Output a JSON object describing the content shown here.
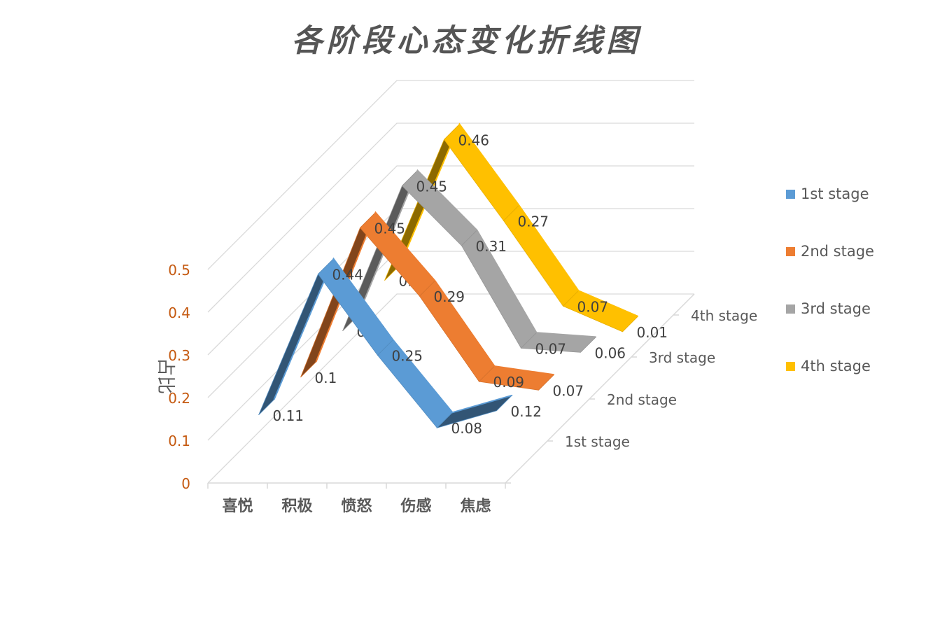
{
  "chart_data": {
    "type": "line",
    "variant": "3d-ribbon",
    "title": "各阶段心态变化折线图",
    "xlabel": "",
    "ylabel": "占比",
    "ylim": [
      0,
      0.5
    ],
    "yticks": [
      "0",
      "0.1",
      "0.2",
      "0.3",
      "0.4",
      "0.5"
    ],
    "categories": [
      "喜悦",
      "积极",
      "愤怒",
      "伤感",
      "焦虑"
    ],
    "depth_labels": [
      "1st stage",
      "2nd stage",
      "3rd stage",
      "4th stage"
    ],
    "grid": true,
    "legend_position": "right",
    "series": [
      {
        "name": "1st stage",
        "color": "#5B9BD5",
        "values": [
          0.11,
          0.44,
          0.25,
          0.08,
          0.12
        ],
        "labels": [
          "0.11",
          "0.44",
          "0.25",
          "0.08",
          "0.12"
        ]
      },
      {
        "name": "2nd stage",
        "color": "#ED7D31",
        "values": [
          0.1,
          0.45,
          0.29,
          0.09,
          0.07
        ],
        "labels": [
          "0.1",
          "0.45",
          "0.29",
          "0.09",
          "0.07"
        ]
      },
      {
        "name": "3rd stage",
        "color": "#A5A5A5",
        "values": [
          0.11,
          0.45,
          0.31,
          0.07,
          0.06
        ],
        "labels": [
          "0.11",
          "0.45",
          "0.31",
          "0.07",
          "0.06"
        ]
      },
      {
        "name": "4th stage",
        "color": "#FFC000",
        "values": [
          0.13,
          0.46,
          0.27,
          0.07,
          0.01
        ],
        "labels": [
          "0.13",
          "0.46",
          "0.27",
          "0.07",
          "0.01"
        ]
      }
    ]
  }
}
